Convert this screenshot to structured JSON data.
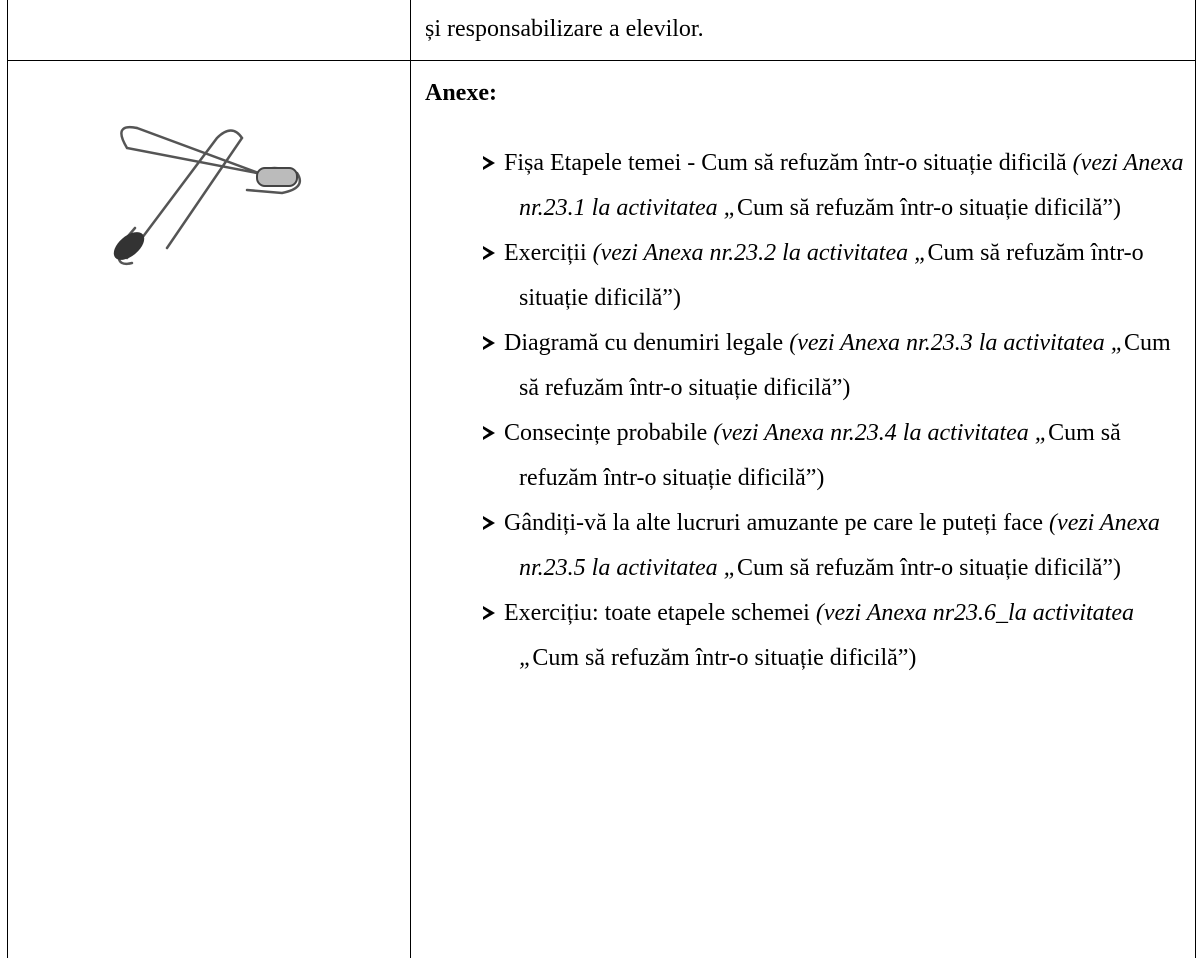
{
  "table": {
    "rows": [
      {
        "text": "și responsabilizare a elevilor."
      },
      {
        "heading": "Anexe:",
        "items": [
          {
            "text": "Fișa Etapele temei - Cum să refuzăm într-o situație dificilă ",
            "reference": "(vezi Anexa nr.23.1 la activitatea „",
            "tail": "Cum să refuzăm într-o situație dificilă”)"
          },
          {
            "text": "Exerciții ",
            "reference": "(vezi Anexa nr.23.2 la activitatea „",
            "tail": "Cum să refuzăm într-o situație dificilă”)"
          },
          {
            "text": "Diagramă cu denumiri legale ",
            "reference": "(vezi Anexa nr.23.3 la activitatea „",
            "tail": "Cum să refuzăm într-o situație dificilă”)"
          },
          {
            "text": "Consecințe probabile ",
            "reference": "(vezi Anexa nr.23.4 la activitatea „",
            "tail": "Cum să refuzăm într-o situație dificilă”)"
          },
          {
            "text": "Gândiți-vă la alte lucruri amuzante pe care le puteți face ",
            "reference": "(vezi Anexa nr.23.5 la activitatea „",
            "tail": "Cum să refuzăm într-o situație dificilă”)"
          },
          {
            "text": "Exercițiu: toate etapele schemei ",
            "reference": "(vezi Anexa nr23.6_la activitatea „",
            "tail": "Cum să refuzăm într-o situație dificilă”)"
          }
        ]
      }
    ]
  }
}
